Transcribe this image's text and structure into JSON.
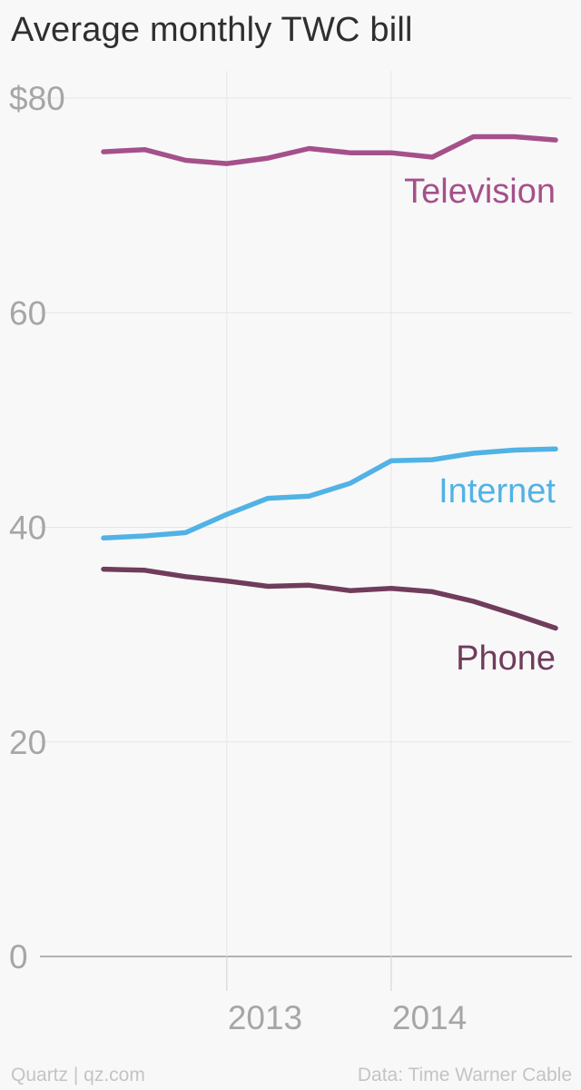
{
  "title": "Average monthly TWC bill",
  "footer": {
    "credit": "Quartz | qz.com",
    "source": "Data: Time Warner Cable"
  },
  "chart_data": {
    "type": "line",
    "title": "Average monthly TWC bill",
    "xlabel": "",
    "ylabel": "",
    "x": [
      "2012 Q1",
      "2012 Q2",
      "2012 Q3",
      "2012 Q4",
      "2013 Q1",
      "2013 Q2",
      "2013 Q3",
      "2013 Q4",
      "2014 Q1",
      "2014 Q2",
      "2014 Q3",
      "2014 Q4"
    ],
    "x_ticks": [
      {
        "label": "2013",
        "at": "2012 Q4"
      },
      {
        "label": "2014",
        "at": "2013 Q4"
      }
    ],
    "y_ticks": [
      {
        "value": 0,
        "label": "0"
      },
      {
        "value": 20,
        "label": "20"
      },
      {
        "value": 40,
        "label": "40"
      },
      {
        "value": 60,
        "label": "60"
      },
      {
        "value": 80,
        "label": "$80"
      }
    ],
    "ylim": [
      0,
      80
    ],
    "grid": true,
    "series": [
      {
        "name": "Television",
        "color": "#a5508a",
        "values": [
          75.0,
          75.2,
          74.2,
          73.9,
          74.4,
          75.3,
          74.9,
          74.9,
          74.5,
          76.4,
          76.4,
          76.1
        ]
      },
      {
        "name": "Internet",
        "color": "#51b2e5",
        "values": [
          39.0,
          39.2,
          39.5,
          41.2,
          42.7,
          42.9,
          44.1,
          46.2,
          46.3,
          46.9,
          47.2,
          47.3
        ]
      },
      {
        "name": "Phone",
        "color": "#703c5c",
        "values": [
          36.1,
          36.0,
          35.4,
          35.0,
          34.5,
          34.6,
          34.1,
          34.3,
          34.0,
          33.1,
          31.9,
          30.6
        ]
      }
    ]
  }
}
